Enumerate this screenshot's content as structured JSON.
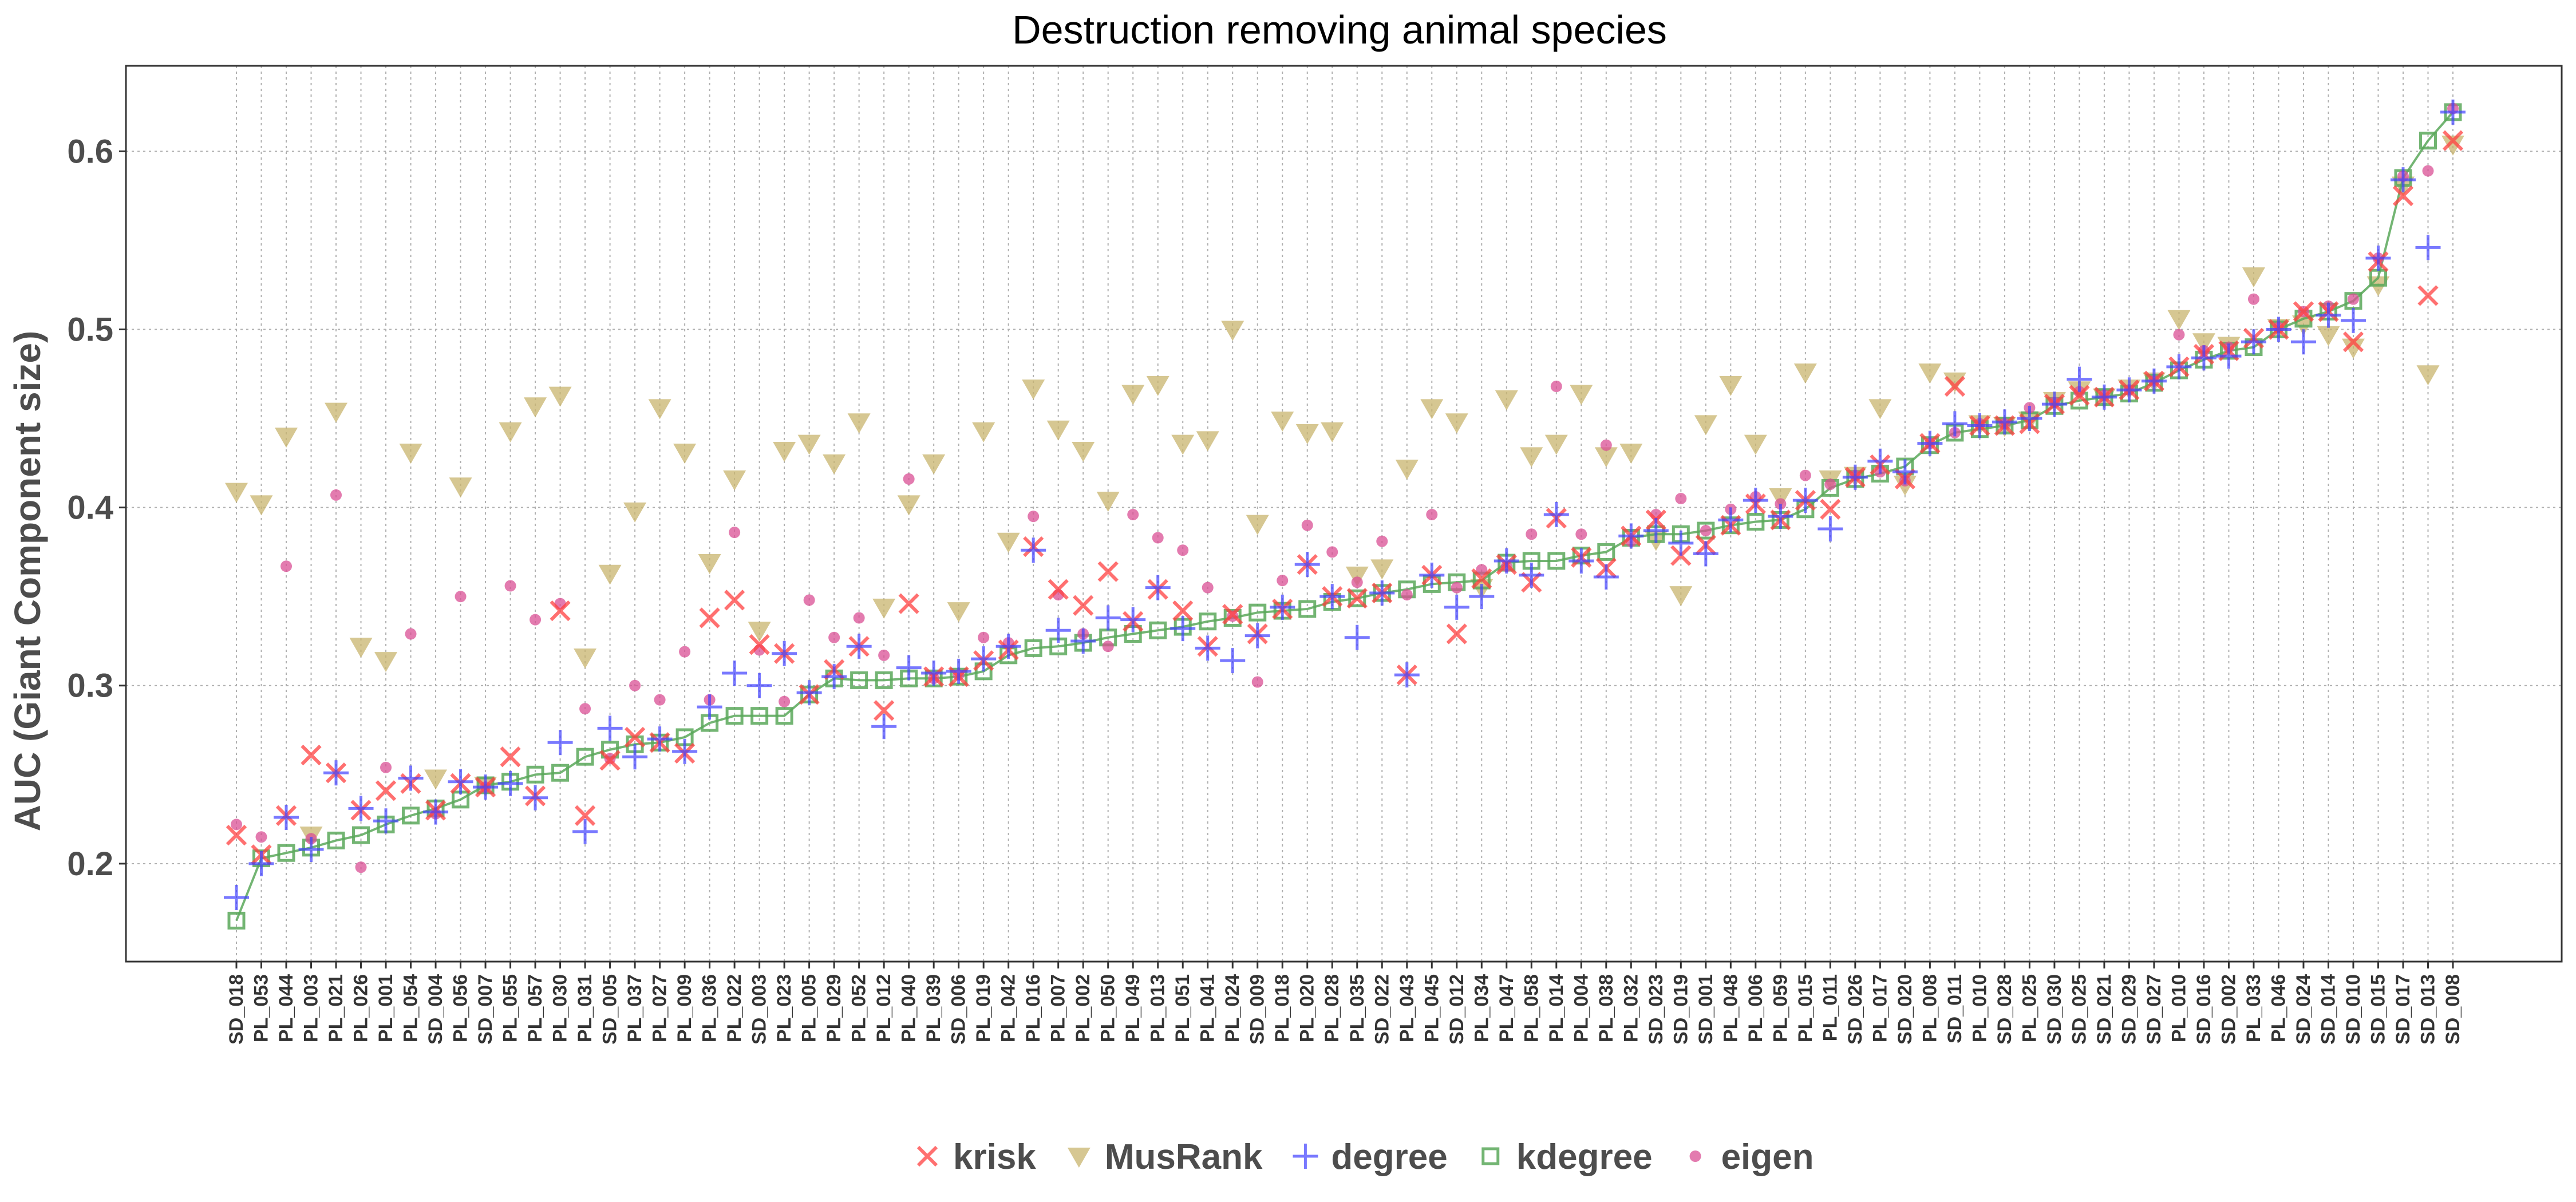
{
  "chart_data": {
    "type": "scatter",
    "title": "Destruction removing animal species",
    "xlabel": "",
    "ylabel": "AUC (Giant Component size)",
    "ylim": [
      0.145,
      0.648
    ],
    "yticks": [
      0.2,
      0.3,
      0.4,
      0.5,
      0.6
    ],
    "ytick_labels": [
      "0.2",
      "0.3",
      "0.4",
      "0.5",
      "0.6"
    ],
    "grid": true,
    "legend_position": "bottom",
    "categories": [
      "SD_018",
      "PL_053",
      "PL_044",
      "PL_003",
      "PL_021",
      "PL_026",
      "PL_001",
      "PL_054",
      "SD_004",
      "PL_056",
      "SD_007",
      "PL_055",
      "PL_057",
      "PL_030",
      "PL_031",
      "SD_005",
      "PL_037",
      "PL_027",
      "PL_009",
      "PL_036",
      "PL_022",
      "SD_003",
      "PL_023",
      "PL_005",
      "PL_029",
      "PL_052",
      "PL_012",
      "PL_040",
      "PL_039",
      "SD_006",
      "PL_019",
      "PL_042",
      "PL_016",
      "PL_007",
      "PL_002",
      "PL_050",
      "PL_049",
      "PL_013",
      "PL_051",
      "PL_041",
      "PL_024",
      "SD_009",
      "PL_018",
      "PL_020",
      "PL_028",
      "PL_035",
      "SD_022",
      "PL_043",
      "PL_045",
      "SD_012",
      "PL_034",
      "PL_047",
      "PL_058",
      "PL_014",
      "PL_004",
      "PL_038",
      "PL_032",
      "SD_023",
      "SD_019",
      "SD_001",
      "PL_048",
      "PL_006",
      "PL_059",
      "PL_015",
      "PL_011",
      "SD_026",
      "PL_017",
      "SD_020",
      "PL_008",
      "SD_011",
      "PL_010",
      "SD_028",
      "PL_025",
      "SD_030",
      "SD_025",
      "SD_021",
      "SD_029",
      "SD_027",
      "PL_010",
      "SD_016",
      "SD_002",
      "PL_033",
      "PL_046",
      "SD_024",
      "SD_014",
      "SD_010",
      "SD_015",
      "SD_017",
      "SD_013",
      "SD_008"
    ],
    "series": [
      {
        "name": "krisk",
        "marker": "x",
        "color": "#ff4040",
        "values": [
          0.216,
          0.205,
          0.227,
          0.261,
          0.251,
          0.23,
          0.241,
          0.245,
          0.23,
          0.245,
          0.243,
          0.26,
          0.238,
          0.342,
          0.227,
          0.258,
          0.271,
          0.268,
          0.262,
          0.338,
          0.348,
          0.323,
          0.318,
          0.295,
          0.309,
          0.322,
          0.286,
          0.346,
          0.305,
          0.305,
          0.314,
          0.32,
          0.378,
          0.354,
          0.345,
          0.364,
          0.336,
          0.354,
          0.342,
          0.322,
          0.34,
          0.329,
          0.343,
          0.368,
          0.35,
          0.349,
          0.352,
          0.306,
          0.362,
          0.329,
          0.36,
          0.368,
          0.358,
          0.394,
          0.372,
          0.366,
          0.384,
          0.393,
          0.373,
          0.379,
          0.39,
          0.402,
          0.393,
          0.404,
          0.399,
          0.417,
          0.424,
          0.416,
          0.436,
          0.468,
          0.446,
          0.446,
          0.447,
          0.458,
          0.463,
          0.462,
          0.466,
          0.471,
          0.479,
          0.486,
          0.488,
          0.495,
          0.5,
          0.51,
          0.51,
          0.493,
          0.538,
          0.575,
          0.519,
          0.606
        ]
      },
      {
        "name": "MusRank",
        "marker": "triangle-down",
        "color": "#c8b46e",
        "values": [
          0.409,
          0.402,
          0.44,
          0.216,
          0.454,
          0.322,
          0.314,
          0.431,
          0.248,
          0.412,
          0.244,
          0.443,
          0.457,
          0.463,
          0.316,
          0.363,
          0.398,
          0.456,
          0.431,
          0.369,
          0.416,
          0.331,
          0.432,
          0.436,
          0.425,
          0.448,
          0.344,
          0.402,
          0.425,
          0.342,
          0.443,
          0.381,
          0.467,
          0.444,
          0.432,
          0.404,
          0.464,
          0.469,
          0.436,
          0.438,
          0.5,
          0.391,
          0.449,
          0.442,
          0.443,
          0.362,
          0.366,
          0.422,
          0.456,
          0.448,
          0.355,
          0.461,
          0.429,
          0.436,
          0.464,
          0.429,
          0.431,
          0.382,
          0.351,
          0.447,
          0.469,
          0.436,
          0.406,
          0.476,
          0.416,
          0.418,
          0.456,
          0.413,
          0.476,
          0.471,
          0.447,
          0.446,
          0.449,
          0.46,
          0.466,
          0.462,
          0.467,
          0.471,
          0.506,
          0.493,
          0.491,
          0.53,
          0.501,
          0.503,
          0.497,
          0.49,
          0.525,
          0.581,
          0.475,
          0.604
        ]
      },
      {
        "name": "degree",
        "marker": "plus",
        "color": "#4040ff",
        "values": [
          0.181,
          0.2,
          0.226,
          0.208,
          0.251,
          0.231,
          0.224,
          0.248,
          0.229,
          0.246,
          0.243,
          0.245,
          0.237,
          0.268,
          0.218,
          0.276,
          0.26,
          0.27,
          0.263,
          0.288,
          0.307,
          0.3,
          0.318,
          0.296,
          0.305,
          0.322,
          0.277,
          0.31,
          0.307,
          0.308,
          0.315,
          0.322,
          0.376,
          0.331,
          0.325,
          0.338,
          0.337,
          0.355,
          0.332,
          0.321,
          0.314,
          0.328,
          0.344,
          0.368,
          0.35,
          0.327,
          0.352,
          0.306,
          0.362,
          0.344,
          0.35,
          0.37,
          0.362,
          0.396,
          0.37,
          0.361,
          0.384,
          0.387,
          0.38,
          0.374,
          0.393,
          0.404,
          0.395,
          0.404,
          0.388,
          0.417,
          0.426,
          0.42,
          0.436,
          0.447,
          0.446,
          0.448,
          0.45,
          0.458,
          0.472,
          0.462,
          0.466,
          0.471,
          0.479,
          0.484,
          0.485,
          0.493,
          0.5,
          0.493,
          0.508,
          0.505,
          0.54,
          0.584,
          0.546,
          0.622
        ]
      },
      {
        "name": "kdegree",
        "marker": "square",
        "color": "#5aa85a",
        "values": [
          0.168,
          0.203,
          0.206,
          0.209,
          0.213,
          0.216,
          0.222,
          0.227,
          0.231,
          0.236,
          0.244,
          0.246,
          0.25,
          0.251,
          0.26,
          0.264,
          0.267,
          0.268,
          0.271,
          0.279,
          0.283,
          0.283,
          0.283,
          0.295,
          0.304,
          0.303,
          0.303,
          0.304,
          0.304,
          0.305,
          0.308,
          0.317,
          0.321,
          0.322,
          0.324,
          0.327,
          0.329,
          0.331,
          0.333,
          0.336,
          0.338,
          0.341,
          0.342,
          0.343,
          0.347,
          0.349,
          0.352,
          0.354,
          0.357,
          0.358,
          0.359,
          0.369,
          0.37,
          0.37,
          0.373,
          0.375,
          0.383,
          0.385,
          0.385,
          0.387,
          0.39,
          0.392,
          0.393,
          0.399,
          0.411,
          0.416,
          0.419,
          0.423,
          0.435,
          0.442,
          0.444,
          0.446,
          0.449,
          0.457,
          0.46,
          0.462,
          0.464,
          0.47,
          0.477,
          0.483,
          0.488,
          0.49,
          0.5,
          0.506,
          0.51,
          0.516,
          0.529,
          0.585,
          0.606,
          0.622
        ]
      },
      {
        "name": "eigen",
        "marker": "circle",
        "color": "#d94f94",
        "values": [
          0.222,
          0.215,
          0.367,
          0.214,
          0.407,
          0.198,
          0.254,
          0.329,
          0.228,
          0.35,
          0.243,
          0.356,
          0.337,
          0.346,
          0.287,
          0.259,
          0.3,
          0.292,
          0.319,
          0.292,
          0.386,
          0.32,
          0.291,
          0.348,
          0.327,
          0.338,
          0.317,
          0.416,
          0.304,
          0.306,
          0.327,
          0.324,
          0.395,
          0.351,
          0.329,
          0.322,
          0.396,
          0.383,
          0.376,
          0.355,
          0.339,
          0.302,
          0.359,
          0.39,
          0.375,
          0.358,
          0.381,
          0.351,
          0.396,
          0.355,
          0.365,
          0.367,
          0.385,
          0.468,
          0.385,
          0.435,
          0.381,
          0.396,
          0.405,
          0.387,
          0.399,
          0.406,
          0.402,
          0.418,
          0.413,
          0.418,
          0.42,
          0.415,
          0.436,
          0.442,
          0.447,
          0.447,
          0.456,
          0.459,
          0.465,
          0.463,
          0.466,
          0.471,
          0.497,
          0.488,
          0.49,
          0.517,
          0.501,
          0.51,
          0.513,
          0.517,
          0.54,
          0.586,
          0.589,
          0.624
        ]
      }
    ]
  }
}
